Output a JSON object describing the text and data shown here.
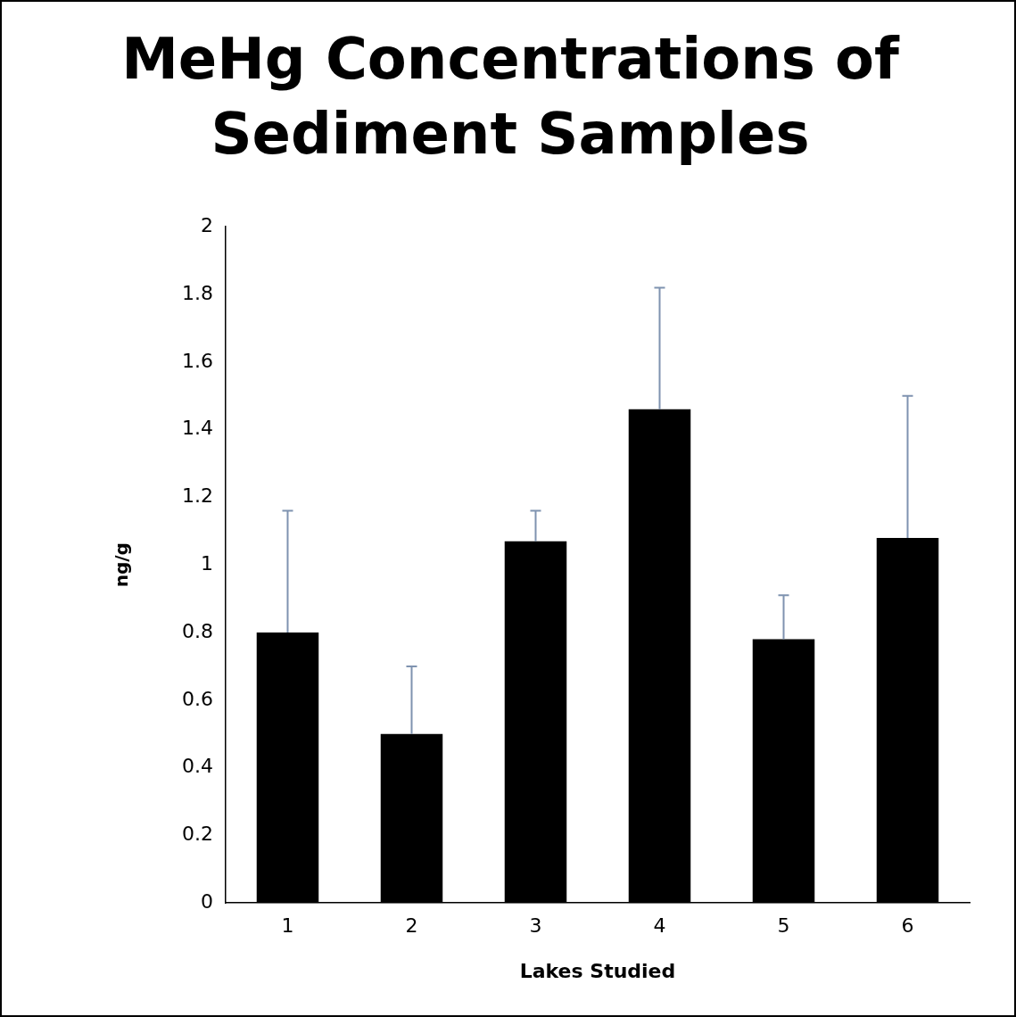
{
  "chart_data": {
    "type": "bar",
    "title": "MeHg Concentrations of Sediment Samples",
    "xlabel": "Lakes Studied",
    "ylabel": "ng/g",
    "categories": [
      "1",
      "2",
      "3",
      "4",
      "5",
      "6"
    ],
    "values": [
      0.8,
      0.5,
      1.07,
      1.46,
      0.78,
      1.08
    ],
    "errors": [
      [
        0.8,
        1.16
      ],
      [
        0.5,
        0.7
      ],
      [
        1.07,
        1.16
      ],
      [
        1.46,
        1.82
      ],
      [
        0.78,
        0.91
      ],
      [
        1.08,
        1.5
      ]
    ],
    "color": "#000000",
    "ylim": [
      0,
      2
    ],
    "yticks": [
      0,
      0.2,
      0.4,
      0.6,
      0.8,
      1,
      1.2,
      1.4,
      1.6,
      1.8,
      2
    ],
    "grid": false,
    "legend": false
  }
}
